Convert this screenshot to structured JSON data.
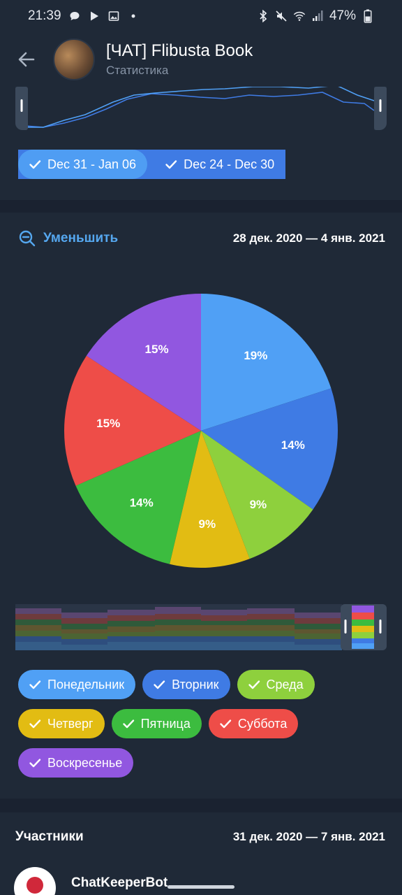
{
  "status_bar": {
    "time": "21:39",
    "battery": "47%"
  },
  "header": {
    "title": "[ЧАТ] Flibusta Book",
    "subtitle": "Статистика"
  },
  "week_chips": [
    {
      "label": "Dec 31 - Jan 06",
      "color": "#3f7be4"
    },
    {
      "label": "Dec 24 - Dec 30",
      "color": "#4f9df3"
    }
  ],
  "pie_section": {
    "zoom_label": "Уменьшить",
    "date_range": "28 дек. 2020 — 4 янв. 2021"
  },
  "chart_data": {
    "type": "pie",
    "slices": [
      {
        "name": "Понедельник",
        "value": 19,
        "label": "19%",
        "color": "#50a0f5"
      },
      {
        "name": "Вторник",
        "value": 14,
        "label": "14%",
        "color": "#3f7be4"
      },
      {
        "name": "Среда",
        "value": 9,
        "label": "9%",
        "color": "#8ed03d"
      },
      {
        "name": "Четверг",
        "value": 9,
        "label": "9%",
        "color": "#e2bc13"
      },
      {
        "name": "Пятница",
        "value": 14,
        "label": "14%",
        "color": "#3cbc3f"
      },
      {
        "name": "Суббота",
        "value": 15,
        "label": "15%",
        "color": "#ee4d48"
      },
      {
        "name": "Воскресенье",
        "value": 15,
        "label": "15%",
        "color": "#9157e0"
      }
    ]
  },
  "day_chips": [
    {
      "label": "Понедельник",
      "color": "#50a0f5"
    },
    {
      "label": "Вторник",
      "color": "#3f7be4"
    },
    {
      "label": "Среда",
      "color": "#8ed03d"
    },
    {
      "label": "Четверг",
      "color": "#e2bc13"
    },
    {
      "label": "Пятница",
      "color": "#3cbc3f"
    },
    {
      "label": "Суббота",
      "color": "#ee4d48"
    },
    {
      "label": "Воскресенье",
      "color": "#9157e0"
    }
  ],
  "members_section": {
    "title": "Участники",
    "date_range": "31 дек. 2020 — 7 янв. 2021",
    "first_member": "ChatKeeperBot"
  }
}
